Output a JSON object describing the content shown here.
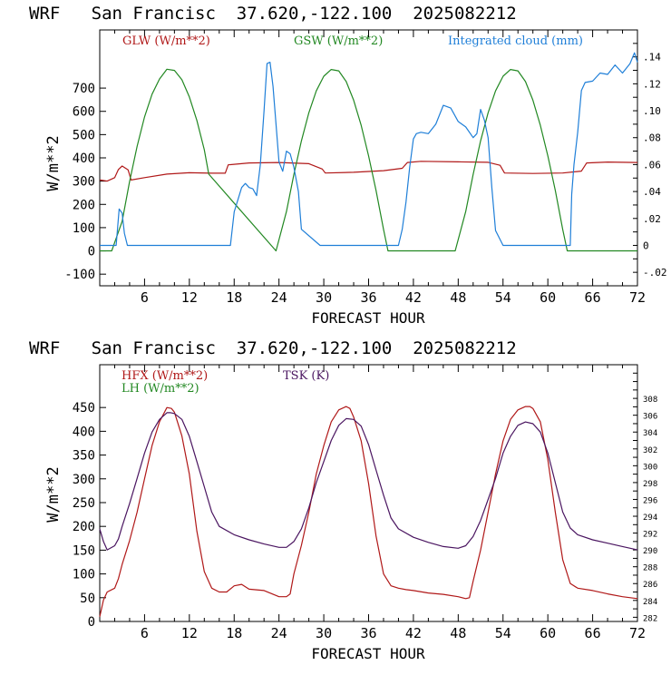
{
  "chart_data": [
    {
      "type": "line",
      "title": "WRF   San Francisc  37.620,-122.100  2025082212",
      "xlabel": "FORECAST HOUR",
      "ylabel": "W/m**2",
      "xlim": [
        0,
        72
      ],
      "ylim": [
        -150,
        950
      ],
      "y2lim": [
        -0.03,
        0.16
      ],
      "x_ticks": [
        6,
        12,
        18,
        24,
        30,
        36,
        42,
        48,
        54,
        60,
        66,
        72
      ],
      "y_ticks": [
        -100,
        0,
        100,
        200,
        300,
        400,
        500,
        600,
        700
      ],
      "y2_ticks": [
        -0.02,
        0,
        0.02,
        0.04,
        0.06,
        0.08,
        0.1,
        0.12,
        0.14
      ],
      "y2_tick_labels": [
        "-.02",
        "0",
        ".02",
        ".04",
        ".06",
        ".08",
        ".10",
        ".12",
        ".14"
      ],
      "series": [
        {
          "name": "GLW (W/m**2)",
          "axis": "left",
          "color": "#b01818",
          "x": [
            0,
            1,
            2,
            2.5,
            3,
            3.8,
            4.2,
            6,
            9,
            12,
            15,
            16.8,
            17.2,
            20,
            24,
            28,
            29.8,
            30.2,
            34,
            38,
            40.5,
            41.2,
            43,
            48,
            52,
            53.6,
            54.2,
            58,
            62,
            64.5,
            65.2,
            68,
            72
          ],
          "y": [
            305,
            300,
            315,
            350,
            365,
            348,
            305,
            315,
            330,
            336,
            334,
            334,
            370,
            378,
            380,
            375,
            352,
            335,
            338,
            345,
            355,
            380,
            385,
            383,
            381,
            368,
            335,
            333,
            335,
            343,
            378,
            382,
            380
          ]
        },
        {
          "name": "GSW (W/m**2)",
          "axis": "left",
          "color": "#228822",
          "x": [
            0,
            1.6,
            3,
            4,
            5,
            6,
            7,
            8,
            9,
            10,
            11,
            12,
            13,
            14,
            14.6,
            23.6,
            25,
            26,
            27,
            28,
            29,
            30,
            31,
            32,
            33,
            34,
            35,
            36,
            37,
            38,
            38.6,
            47.6,
            49,
            50,
            51,
            52,
            53,
            54,
            55,
            56,
            57,
            58,
            59,
            60,
            61,
            62,
            62.6,
            72
          ],
          "y": [
            0,
            0,
            127,
            298,
            449,
            576,
            674,
            739,
            781,
            776,
            736,
            662,
            561,
            435,
            330,
            0,
            169,
            329,
            473,
            594,
            688,
            751,
            780,
            774,
            728,
            648,
            540,
            408,
            260,
            92,
            0,
            0,
            169,
            329,
            473,
            594,
            688,
            751,
            780,
            774,
            728,
            648,
            540,
            408,
            260,
            92,
            0,
            0
          ]
        },
        {
          "name": "Integrated cloud (mm)",
          "axis": "right",
          "color": "#1f7fd8",
          "x": [
            0,
            2.2,
            2.6,
            3,
            3.3,
            3.7,
            4.2,
            14.6,
            15.5,
            16.2,
            17,
            17.5,
            18,
            19,
            19.5,
            20,
            20.5,
            21,
            21.5,
            22,
            22.4,
            22.8,
            23.2,
            24,
            24.5,
            25,
            25.5,
            26,
            26.6,
            27,
            29.5,
            39,
            40,
            40.5,
            41,
            41.5,
            42,
            42.4,
            43,
            44,
            45,
            46,
            47,
            48,
            49,
            50,
            50.5,
            51,
            51.5,
            52,
            52.5,
            53,
            54,
            61.5,
            62,
            62.5,
            63,
            63.2,
            63.5,
            64,
            64.5,
            65,
            66,
            67,
            68,
            69,
            70,
            71,
            71.6,
            72
          ],
          "y": [
            0,
            0,
            0.027,
            0.024,
            0.009,
            0.0,
            0.0,
            0.0,
            0.0,
            0.0,
            0.0,
            0.0,
            0.025,
            0.043,
            0.046,
            0.043,
            0.042,
            0.037,
            0.06,
            0.1,
            0.135,
            0.136,
            0.118,
            0.062,
            0.055,
            0.07,
            0.068,
            0.058,
            0.04,
            0.012,
            0.0,
            0.0,
            0.0,
            0.012,
            0.032,
            0.058,
            0.079,
            0.083,
            0.084,
            0.083,
            0.09,
            0.104,
            0.102,
            0.092,
            0.088,
            0.08,
            0.083,
            0.101,
            0.093,
            0.08,
            0.043,
            0.011,
            0.0,
            0.0,
            0.0,
            0.0,
            0.0,
            0.038,
            0.06,
            0.084,
            0.115,
            0.121,
            0.122,
            0.128,
            0.127,
            0.134,
            0.128,
            0.135,
            0.143,
            0.136
          ]
        }
      ]
    },
    {
      "type": "line",
      "title": "WRF   San Francisc  37.620,-122.100  2025082212",
      "xlabel": "FORECAST HOUR",
      "ylabel": "W/m**2",
      "xlim": [
        0,
        72
      ],
      "ylim": [
        0,
        540
      ],
      "y2lim": [
        281.5,
        312
      ],
      "x_ticks": [
        6,
        12,
        18,
        24,
        30,
        36,
        42,
        48,
        54,
        60,
        66,
        72
      ],
      "y_ticks": [
        0,
        50,
        100,
        150,
        200,
        250,
        300,
        350,
        400,
        450
      ],
      "y2_ticks": [
        282,
        284,
        286,
        288,
        290,
        292,
        294,
        296,
        298,
        300,
        302,
        304,
        306,
        308
      ],
      "series": [
        {
          "name": "HFX (W/m**2)",
          "axis": "left",
          "color": "#b01818",
          "x": [
            0,
            0.5,
            1,
            2,
            2.5,
            3,
            4,
            5,
            6,
            7,
            8,
            9,
            9.6,
            10,
            11,
            12,
            13,
            14,
            15,
            16,
            17,
            18,
            19,
            20,
            22,
            24,
            25,
            25.5,
            26,
            27,
            28,
            29,
            30,
            31,
            32,
            33,
            33.5,
            34,
            35,
            36,
            37,
            38,
            39,
            40,
            41,
            42,
            44,
            46,
            48,
            49,
            49.5,
            50,
            51,
            52,
            53,
            54,
            55,
            56,
            57,
            57.6,
            58,
            59,
            60,
            61,
            62,
            63,
            64,
            66,
            68,
            70,
            72
          ],
          "y": [
            10,
            45,
            62,
            70,
            90,
            120,
            170,
            230,
            300,
            370,
            420,
            450,
            448,
            440,
            390,
            310,
            190,
            105,
            70,
            62,
            62,
            75,
            78,
            68,
            65,
            52,
            52,
            58,
            100,
            160,
            230,
            310,
            370,
            420,
            445,
            452,
            448,
            430,
            380,
            290,
            180,
            100,
            75,
            70,
            67,
            65,
            60,
            57,
            52,
            48,
            50,
            85,
            150,
            230,
            310,
            380,
            425,
            445,
            452,
            452,
            448,
            420,
            340,
            230,
            130,
            80,
            70,
            65,
            58,
            52,
            48
          ]
        },
        {
          "name": "TSK (K)",
          "axis": "right",
          "color": "#4a1560",
          "x": [
            0,
            0.5,
            1,
            2,
            2.5,
            3,
            4,
            5,
            6,
            7,
            8,
            9,
            9.5,
            10,
            11,
            12,
            13,
            14,
            15,
            16,
            18,
            20,
            22,
            24,
            25,
            26,
            27,
            28,
            29,
            30,
            31,
            32,
            33,
            34,
            35,
            36,
            37,
            38,
            39,
            40,
            42,
            44,
            46,
            48,
            49,
            50,
            51,
            52,
            53,
            54,
            55,
            56,
            57,
            58,
            59,
            60,
            61,
            62,
            63,
            64,
            66,
            68,
            70,
            72
          ],
          "y": [
            292.5,
            291,
            290,
            290.5,
            291.3,
            292.8,
            295.5,
            298.5,
            301.5,
            304,
            305.5,
            306.3,
            306.3,
            306.2,
            305.5,
            303.5,
            300.5,
            297.5,
            294.5,
            292.8,
            291.8,
            291.2,
            290.7,
            290.3,
            290.3,
            291,
            292.5,
            295,
            298,
            300.5,
            303,
            304.8,
            305.6,
            305.5,
            304.7,
            302.5,
            299.5,
            296.5,
            293.8,
            292.5,
            291.5,
            290.9,
            290.4,
            290.2,
            290.5,
            291.6,
            293.5,
            296,
            298.5,
            301.5,
            303.5,
            304.8,
            305.2,
            305,
            304,
            301.5,
            298,
            294.5,
            292.6,
            291.8,
            291.2,
            290.8,
            290.4,
            290
          ]
        }
      ]
    }
  ]
}
